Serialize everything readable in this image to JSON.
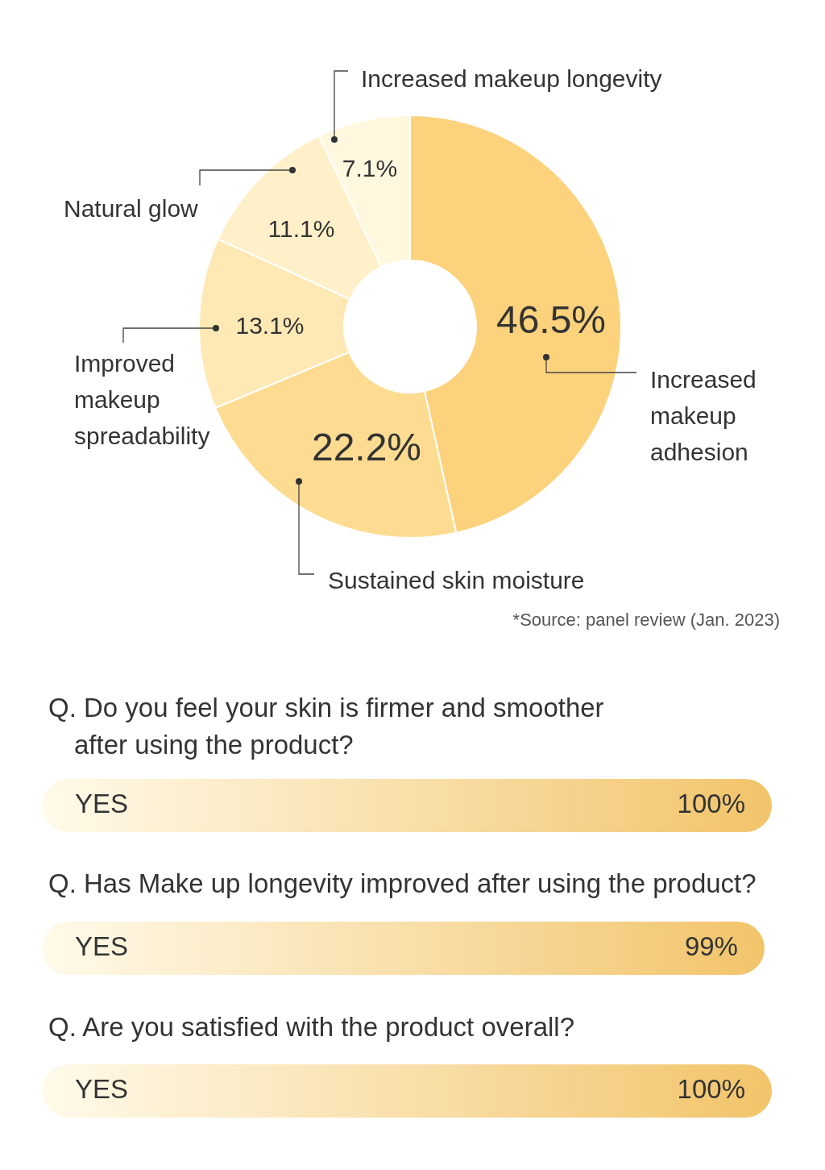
{
  "chart_data": [
    {
      "type": "donut",
      "categories": [
        "Increased makeup adhesion",
        "Sustained skin moisture",
        "Improved makeup spreadability",
        "Natural glow",
        "Increased makeup longevity"
      ],
      "values": [
        46.5,
        22.2,
        13.1,
        11.1,
        7.1
      ],
      "value_labels": [
        "46.5%",
        "22.2%",
        "13.1%",
        "11.1%",
        "7.1%"
      ],
      "colors": [
        "#fcd27c",
        "#fddc92",
        "#fee8b4",
        "#fff0c9",
        "#fff8df"
      ],
      "annotations": [
        "*Source: panel review (Jan. 2023)"
      ]
    },
    {
      "type": "bar",
      "orientation": "horizontal",
      "categories": [
        "Q. Do you feel your skin is firmer and smoother after using the product?",
        "Q. Has Make up longevity improved after using the product?",
        "Q. Are you satisfied with the product overall?"
      ],
      "values": [
        100,
        99,
        100
      ],
      "value_labels": [
        "100%",
        "99%",
        "100%"
      ],
      "color": "#f2c46a",
      "xlim": [
        0,
        100
      ],
      "tick_labels": "y",
      "annotations": [
        "YES",
        "YES",
        "YES"
      ]
    }
  ]
}
